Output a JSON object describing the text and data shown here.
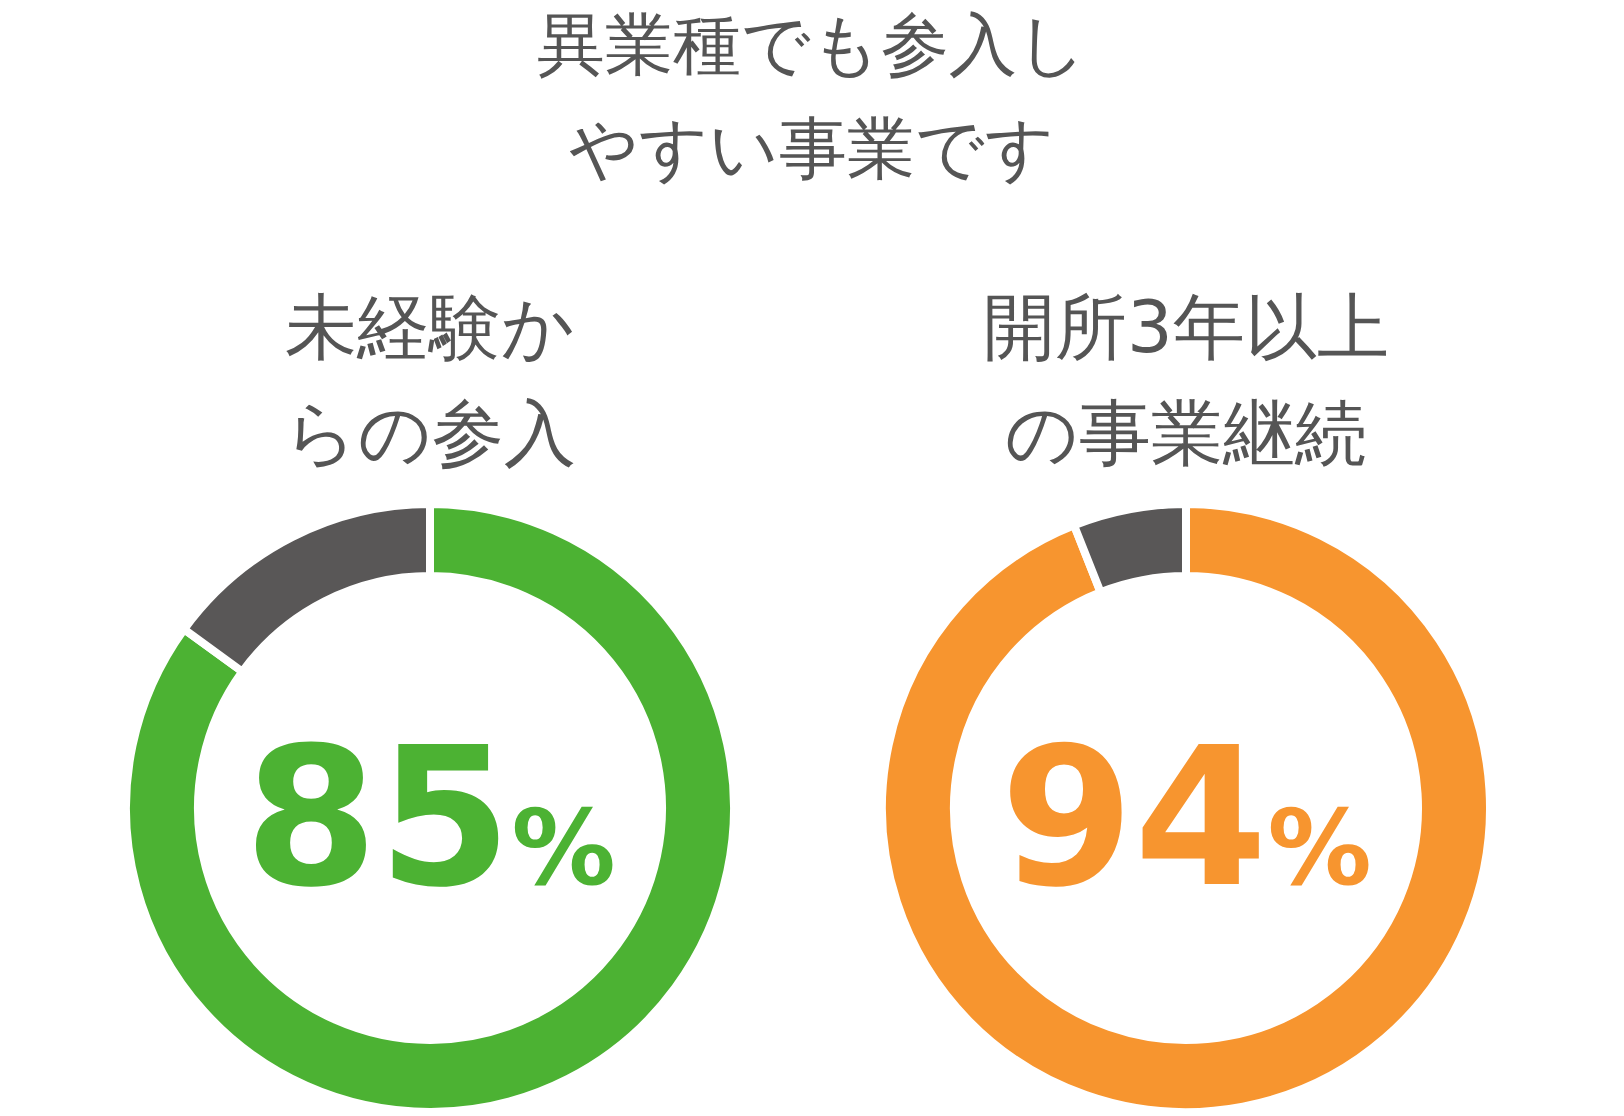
{
  "chart_data": [
    {
      "type": "other",
      "title": "異業種でも参入しやすい事業です"
    },
    {
      "type": "donut",
      "title": "未経験からの参入",
      "categories": [
        null,
        null
      ],
      "values": [
        85,
        15
      ],
      "colors": [
        "#4cb233",
        "#595757"
      ],
      "value_labels": [
        "85%",
        null
      ]
    },
    {
      "type": "donut",
      "title": "開所3年以上の事業継続",
      "categories": [
        null,
        null
      ],
      "values": [
        94,
        6
      ],
      "colors": [
        "#f7952f",
        "#595757"
      ],
      "value_labels": [
        "94%",
        null
      ]
    }
  ]
}
